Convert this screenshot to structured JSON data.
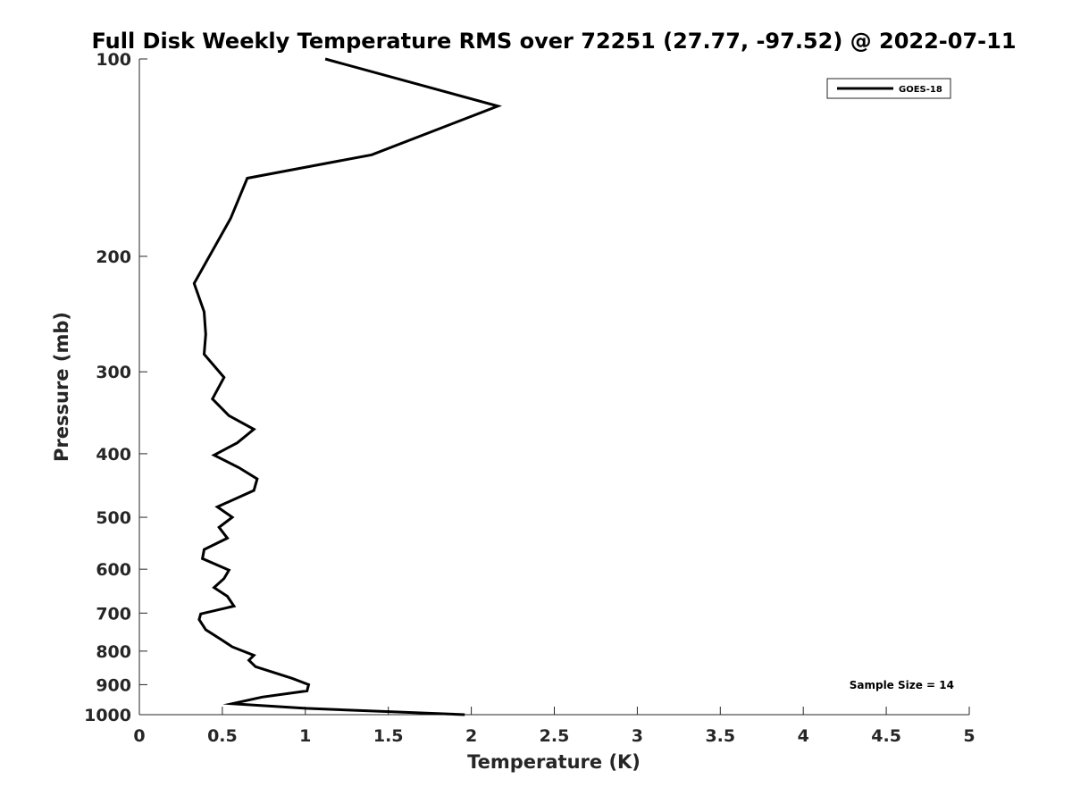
{
  "chart_data": {
    "type": "line",
    "title": "Full Disk Weekly Temperature RMS over 72251 (27.77, -97.52) @ 2022-07-11",
    "xlabel": "Temperature (K)",
    "ylabel": "Pressure (mb)",
    "xlim": [
      0,
      5
    ],
    "ylim": [
      100,
      1000
    ],
    "y_scale": "log",
    "y_reversed": true,
    "grid": false,
    "x_ticks": [
      "0",
      "0.5",
      "1",
      "1.5",
      "2",
      "2.5",
      "3",
      "3.5",
      "4",
      "4.5",
      "5"
    ],
    "y_ticks": [
      "100",
      "200",
      "300",
      "400",
      "500",
      "600",
      "700",
      "800",
      "900",
      "1000"
    ],
    "legend_position": "top-right",
    "series": [
      {
        "name": "GOES-18",
        "color": "#000000",
        "points": [
          [
            1.12,
            100
          ],
          [
            2.16,
            118
          ],
          [
            1.4,
            140
          ],
          [
            0.65,
            152
          ],
          [
            0.55,
            175
          ],
          [
            0.33,
            220
          ],
          [
            0.39,
            243
          ],
          [
            0.4,
            263
          ],
          [
            0.39,
            282
          ],
          [
            0.51,
            306
          ],
          [
            0.44,
            330
          ],
          [
            0.54,
            350
          ],
          [
            0.69,
            367
          ],
          [
            0.59,
            385
          ],
          [
            0.45,
            402
          ],
          [
            0.6,
            420
          ],
          [
            0.71,
            437
          ],
          [
            0.69,
            455
          ],
          [
            0.47,
            482
          ],
          [
            0.56,
            500
          ],
          [
            0.48,
            518
          ],
          [
            0.53,
            538
          ],
          [
            0.39,
            560
          ],
          [
            0.38,
            578
          ],
          [
            0.54,
            602
          ],
          [
            0.51,
            620
          ],
          [
            0.45,
            640
          ],
          [
            0.53,
            660
          ],
          [
            0.57,
            683
          ],
          [
            0.37,
            702
          ],
          [
            0.36,
            716
          ],
          [
            0.4,
            742
          ],
          [
            0.5,
            770
          ],
          [
            0.56,
            788
          ],
          [
            0.69,
            812
          ],
          [
            0.66,
            826
          ],
          [
            0.7,
            845
          ],
          [
            0.92,
            880
          ],
          [
            1.02,
            900
          ],
          [
            1.01,
            920
          ],
          [
            0.74,
            940
          ],
          [
            0.56,
            962
          ],
          [
            1.0,
            978
          ],
          [
            1.96,
            1000
          ]
        ]
      }
    ]
  },
  "annotation": {
    "sample_size": "Sample Size = 14"
  }
}
